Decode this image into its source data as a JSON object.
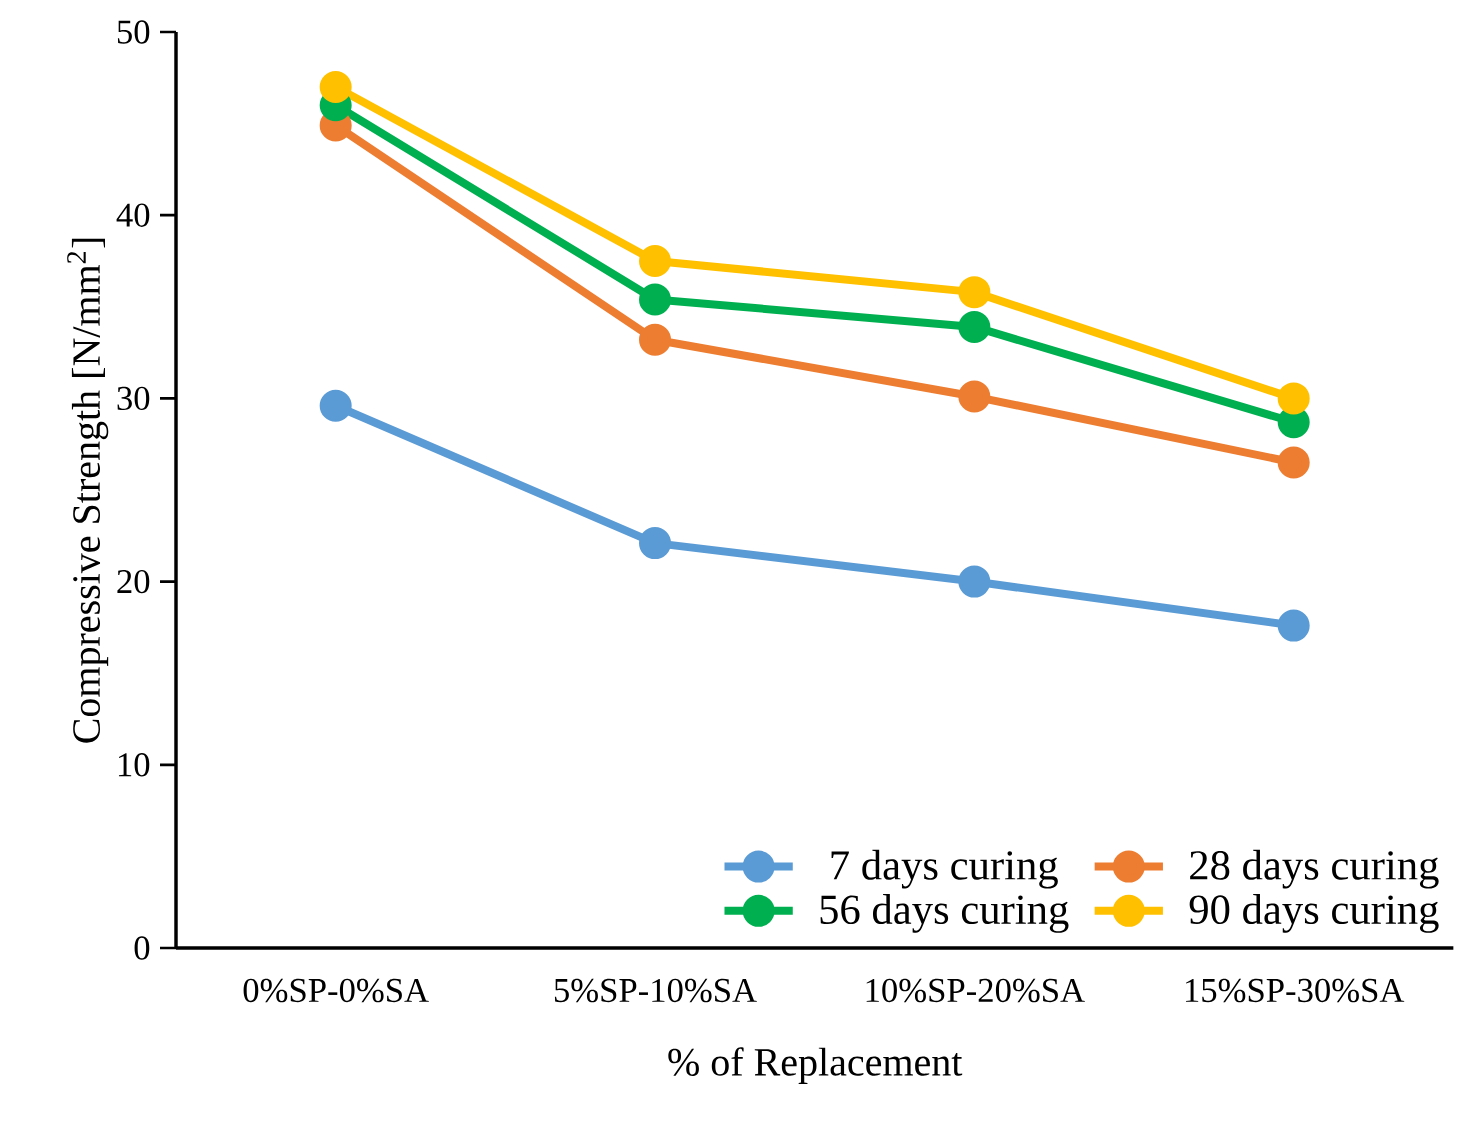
{
  "chart_data": {
    "type": "line",
    "xlabel": "% of Replacement",
    "ylabel": "Compressive Strength [N/mm$^{2}$]",
    "categories": [
      "0%SP-0%SA",
      "5%SP-10%SA",
      "10%SP-20%SA",
      "15%SP-30%SA"
    ],
    "series": [
      {
        "name": "7 days curing",
        "color": "#5b9bd5",
        "values": [
          29.6,
          22.1,
          20.0,
          17.6
        ]
      },
      {
        "name": "28 days curing",
        "color": "#ed7d31",
        "values": [
          44.9,
          33.2,
          30.1,
          26.5
        ]
      },
      {
        "name": "56 days curing",
        "color": "#00b050",
        "values": [
          46.0,
          35.4,
          33.9,
          28.7
        ]
      },
      {
        "name": "90 days curing",
        "color": "#ffc000",
        "values": [
          47.0,
          37.5,
          35.8,
          30.0
        ]
      }
    ],
    "ylim": [
      0,
      50
    ],
    "yticks": [
      0,
      10,
      20,
      30,
      40,
      50
    ],
    "grid": false,
    "legend": "bottom right",
    "marker": "circle",
    "line_style": "solid"
  }
}
